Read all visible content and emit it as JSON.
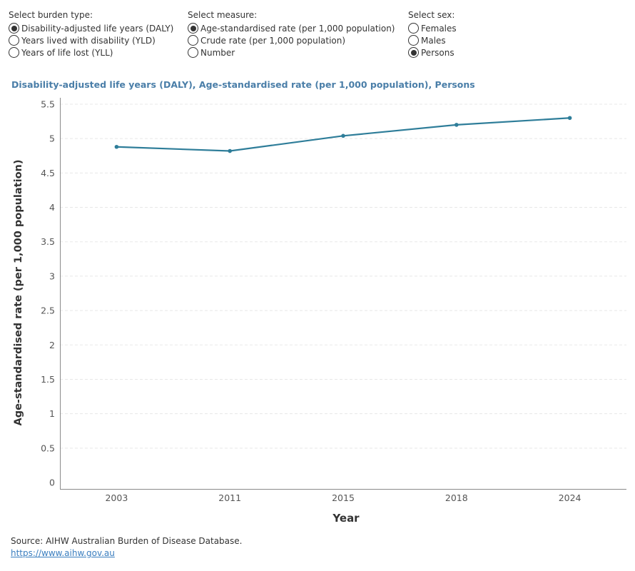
{
  "filters": {
    "burden": {
      "title": "Select burden type:",
      "options": [
        {
          "label": "Disability-adjusted life years (DALY)",
          "selected": true
        },
        {
          "label": "Years lived with disability (YLD)",
          "selected": false
        },
        {
          "label": "Years of life lost (YLL)",
          "selected": false
        }
      ]
    },
    "measure": {
      "title": "Select measure:",
      "options": [
        {
          "label": "Age-standardised rate (per 1,000 population)",
          "selected": true
        },
        {
          "label": "Crude rate (per 1,000 population)",
          "selected": false
        },
        {
          "label": "Number",
          "selected": false
        }
      ]
    },
    "sex": {
      "title": "Select sex:",
      "options": [
        {
          "label": "Females",
          "selected": false
        },
        {
          "label": "Males",
          "selected": false
        },
        {
          "label": "Persons",
          "selected": true
        }
      ]
    }
  },
  "chart_data": {
    "type": "line",
    "title": "Disability-adjusted life years (DALY), Age-standardised rate (per 1,000 population), Persons",
    "xlabel": "Year",
    "ylabel": "Age-standardised rate (per 1,000 population)",
    "categories": [
      "2003",
      "2011",
      "2015",
      "2018",
      "2024"
    ],
    "values": [
      4.88,
      4.82,
      5.04,
      5.2,
      5.3
    ],
    "ylim": [
      0,
      5.5
    ],
    "yticks": [
      0,
      0.5,
      1,
      1.5,
      2,
      2.5,
      3,
      3.5,
      4,
      4.5,
      5,
      5.5
    ],
    "ytick_labels": [
      "0",
      "0.5",
      "1",
      "1.5",
      "2",
      "2.5",
      "3",
      "3.5",
      "4",
      "4.5",
      "5",
      "5.5"
    ],
    "line_color": "#2e7d99",
    "grid": true
  },
  "footer": {
    "source": "Source: AIHW Australian Burden of Disease Database.",
    "link": "https://www.aihw.gov.au"
  }
}
